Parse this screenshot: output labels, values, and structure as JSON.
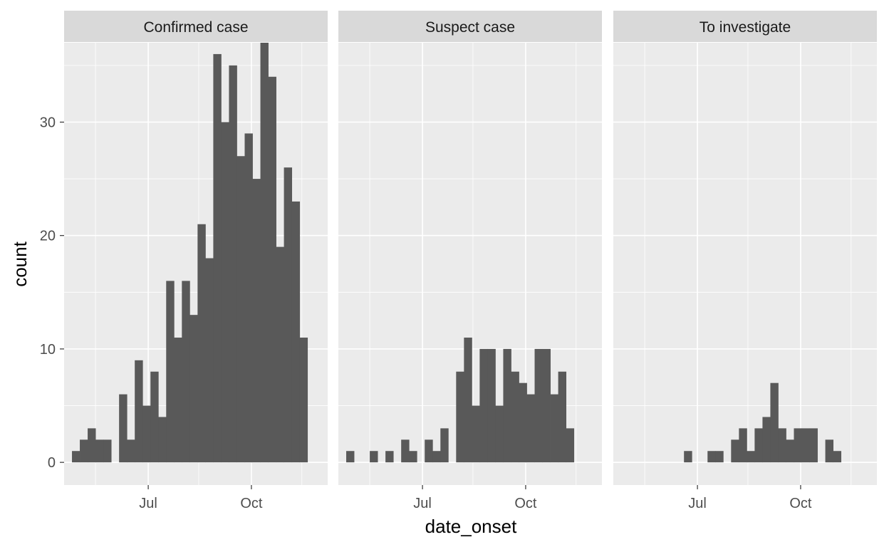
{
  "chart_data": {
    "type": "bar",
    "xlabel": "date_onset",
    "ylabel": "count",
    "ylim": [
      -2,
      37
    ],
    "y_ticks": [
      0,
      10,
      20,
      30
    ],
    "y_tick_labels": [
      "0",
      "10",
      "20",
      "30"
    ],
    "x_ticks": [
      {
        "label": "Jul",
        "date": "2014-07-01"
      },
      {
        "label": "Oct",
        "date": "2014-10-01"
      }
    ],
    "x_grid_minor": [
      "2014-05-15",
      "2014-08-15",
      "2014-11-15"
    ],
    "xlim": [
      "2014-04-17",
      "2014-12-08"
    ],
    "bin_start": "2014-04-24",
    "bin_days": 7,
    "grid": true,
    "bar_color": "#595959",
    "panel_background": "#ebebeb",
    "strip_background": "#d9d9d9",
    "panels": [
      {
        "name": "Confirmed case",
        "values": [
          1,
          2,
          3,
          2,
          2,
          0,
          6,
          2,
          9,
          5,
          8,
          4,
          16,
          11,
          16,
          13,
          21,
          18,
          36,
          30,
          35,
          27,
          29,
          25,
          37,
          34,
          19,
          26,
          23,
          11
        ]
      },
      {
        "name": "Suspect case",
        "values": [
          1,
          0,
          0,
          1,
          0,
          1,
          0,
          2,
          1,
          0,
          2,
          1,
          3,
          0,
          8,
          11,
          5,
          10,
          10,
          5,
          10,
          8,
          7,
          6,
          10,
          10,
          6,
          8,
          3,
          0
        ]
      },
      {
        "name": "To investigate",
        "values": [
          0,
          0,
          0,
          0,
          0,
          0,
          0,
          0,
          1,
          0,
          0,
          1,
          1,
          0,
          2,
          3,
          1,
          3,
          4,
          7,
          3,
          2,
          3,
          3,
          3,
          0,
          2,
          1,
          0,
          0
        ]
      }
    ]
  }
}
